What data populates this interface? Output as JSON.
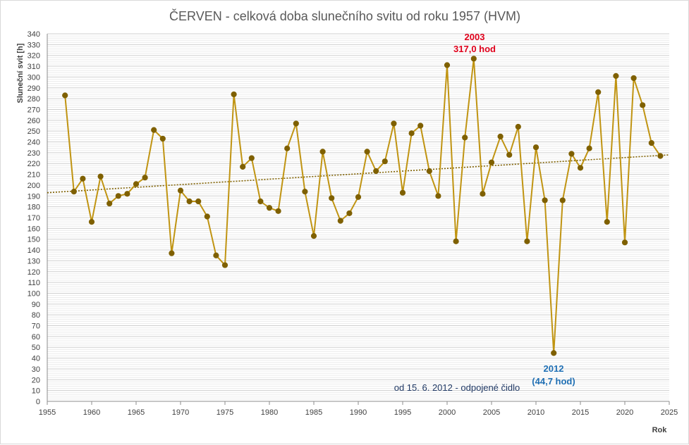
{
  "chart_data": {
    "type": "line",
    "title": "ČERVEN - celková doba slunečního svitu od roku 1957 (HVM)",
    "xlabel": "Rok",
    "ylabel": "Sluneční svit [h]",
    "xlim": [
      1955,
      2025
    ],
    "ylim": [
      0,
      340
    ],
    "x_ticks": [
      1955,
      1960,
      1965,
      1970,
      1975,
      1980,
      1985,
      1990,
      1995,
      2000,
      2005,
      2010,
      2015,
      2020,
      2025
    ],
    "y_tick_step": 10,
    "minor_grid_step": 2,
    "grid": true,
    "legend": "none",
    "series": [
      {
        "color": "#c09412",
        "marker_color": "#7f6000",
        "x": [
          1957,
          1958,
          1959,
          1960,
          1961,
          1962,
          1963,
          1964,
          1965,
          1966,
          1967,
          1968,
          1969,
          1970,
          1971,
          1972,
          1973,
          1974,
          1975,
          1976,
          1977,
          1978,
          1979,
          1980,
          1981,
          1982,
          1983,
          1984,
          1985,
          1986,
          1987,
          1988,
          1989,
          1990,
          1991,
          1992,
          1993,
          1994,
          1995,
          1996,
          1997,
          1998,
          1999,
          2000,
          2001,
          2002,
          2003,
          2004,
          2005,
          2006,
          2007,
          2008,
          2009,
          2010,
          2011,
          2012,
          2013,
          2014,
          2015,
          2016,
          2017,
          2018,
          2019,
          2020,
          2021,
          2022,
          2023,
          2024
        ],
        "y": [
          283,
          194,
          206,
          166,
          208,
          183,
          190,
          192,
          201,
          207,
          251,
          243,
          137,
          195,
          185,
          185,
          171,
          135,
          126,
          284,
          217,
          225,
          185,
          179,
          176,
          234,
          257,
          194,
          153,
          231,
          188,
          167,
          174,
          189,
          231,
          213,
          222,
          257,
          193,
          248,
          255,
          213,
          190,
          311,
          148,
          244,
          317.0,
          192,
          221,
          245,
          228,
          254,
          148,
          235,
          186,
          44.7,
          186,
          229,
          216,
          234,
          286,
          166,
          301,
          147,
          299,
          274,
          239,
          227
        ]
      }
    ],
    "trendline": {
      "type": "linear",
      "style": "dotted",
      "color": "#7f6000",
      "start": [
        1955,
        193
      ],
      "end": [
        2025,
        228
      ]
    },
    "annotations": {
      "max_year": "2003",
      "max_value": "317,0 hod",
      "min_year": "2012",
      "min_value": "(44,7 hod)",
      "note": "od 15. 6. 2012 - odpojené čidlo"
    }
  }
}
